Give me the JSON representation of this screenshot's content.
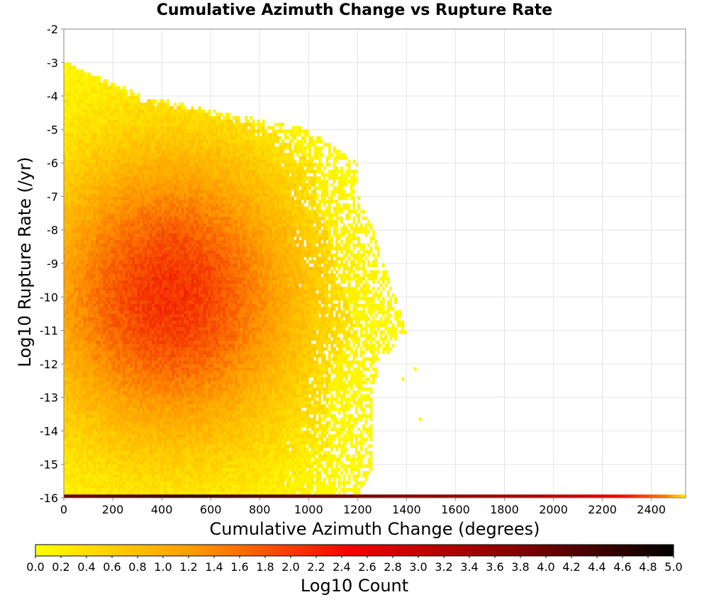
{
  "chart_data": {
    "type": "heatmap",
    "title": "Cumulative Azimuth Change vs Rupture Rate",
    "xlabel": "Cumulative Azimuth Change (degrees)",
    "ylabel": "Log10 Rupture Rate (/yr)",
    "xlim": [
      0,
      2540
    ],
    "ylim": [
      -16,
      -2
    ],
    "x_ticks": [
      "0",
      "200",
      "400",
      "600",
      "800",
      "1000",
      "1200",
      "1400",
      "1600",
      "1800",
      "2000",
      "2200",
      "2400"
    ],
    "y_ticks": [
      "-2",
      "-3",
      "-4",
      "-5",
      "-6",
      "-7",
      "-8",
      "-9",
      "-10",
      "-11",
      "-12",
      "-13",
      "-14",
      "-15",
      "-16"
    ],
    "grid": true,
    "bin_width_x": 10,
    "bin_height_y": 0.1,
    "colorscale": {
      "label": "Log10 Count",
      "min": 0,
      "max": 5,
      "ticks": [
        "0.0",
        "0.2",
        "0.4",
        "0.6",
        "0.8",
        "1.0",
        "1.2",
        "1.4",
        "1.6",
        "1.8",
        "2.0",
        "2.2",
        "2.4",
        "2.6",
        "2.8",
        "3.0",
        "3.2",
        "3.4",
        "3.6",
        "3.8",
        "4.0",
        "4.2",
        "4.4",
        "4.6",
        "4.8",
        "5.0"
      ],
      "stops": [
        {
          "value": 0.0,
          "color": "#ffff00"
        },
        {
          "value": 1.25,
          "color": "#ff9900"
        },
        {
          "value": 2.5,
          "color": "#ee0000"
        },
        {
          "value": 3.75,
          "color": "#880000"
        },
        {
          "value": 5.0,
          "color": "#000000"
        }
      ]
    },
    "density_blob": {
      "center_x": 430,
      "center_y": -10,
      "peak_log10_count": 2.1,
      "x_extent_at_rate": [
        {
          "y": -3,
          "x_max": 10
        },
        {
          "y": -4,
          "x_max": 320
        },
        {
          "y": -5,
          "x_max": 1000
        },
        {
          "y": -6,
          "x_max": 1200
        },
        {
          "y": -7,
          "x_max": 1200
        },
        {
          "y": -8,
          "x_max": 1260
        },
        {
          "y": -9,
          "x_max": 1300
        },
        {
          "y": -10,
          "x_max": 1350
        },
        {
          "y": -11,
          "x_max": 1400
        },
        {
          "y": -12,
          "x_max": 1280
        },
        {
          "y": -13,
          "x_max": 1260
        },
        {
          "y": -14,
          "x_max": 1260
        },
        {
          "y": -15,
          "x_max": 1260
        },
        {
          "y": -16,
          "x_max": 1200
        }
      ],
      "isolated_bins": [
        {
          "x": 1430,
          "y": -12.2
        },
        {
          "x": 1450,
          "y": -13.7
        },
        {
          "x": 1380,
          "y": -12.5
        }
      ]
    },
    "bottom_row": {
      "y_range": [
        -16,
        -15.9
      ],
      "x_range": [
        0,
        2540
      ],
      "log10_count_profile": [
        {
          "x": 0,
          "v": 4.0
        },
        {
          "x": 500,
          "v": 4.5
        },
        {
          "x": 1000,
          "v": 4.1
        },
        {
          "x": 1500,
          "v": 3.7
        },
        {
          "x": 1900,
          "v": 3.3
        },
        {
          "x": 2100,
          "v": 2.9
        },
        {
          "x": 2300,
          "v": 2.3
        },
        {
          "x": 2450,
          "v": 1.5
        },
        {
          "x": 2540,
          "v": 0.2
        }
      ]
    }
  }
}
